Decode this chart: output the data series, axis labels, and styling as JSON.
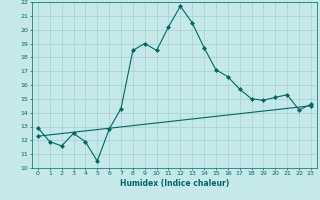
{
  "xlabel": "Humidex (Indice chaleur)",
  "bg_color": "#c5e8e8",
  "grid_color": "#a8d0d0",
  "line_color": "#006868",
  "xlim": [
    -0.5,
    23.5
  ],
  "ylim": [
    10,
    22
  ],
  "xticks": [
    0,
    1,
    2,
    3,
    4,
    5,
    6,
    7,
    8,
    9,
    10,
    11,
    12,
    13,
    14,
    15,
    16,
    17,
    18,
    19,
    20,
    21,
    22,
    23
  ],
  "yticks": [
    10,
    11,
    12,
    13,
    14,
    15,
    16,
    17,
    18,
    19,
    20,
    21,
    22
  ],
  "line1_x": [
    0,
    1,
    2,
    3,
    4,
    5,
    6,
    7,
    8,
    9,
    10,
    11,
    12,
    13,
    14,
    15,
    16,
    17,
    18,
    19,
    20,
    21,
    22,
    23
  ],
  "line1_y": [
    12.9,
    11.9,
    11.6,
    12.5,
    11.9,
    10.5,
    12.8,
    14.3,
    18.5,
    19.0,
    18.5,
    20.2,
    21.7,
    20.5,
    18.7,
    17.1,
    16.6,
    15.7,
    15.0,
    14.9,
    15.1,
    15.3,
    14.2,
    14.6
  ],
  "line2_x": [
    0,
    23
  ],
  "line2_y": [
    12.3,
    14.5
  ],
  "marker": "D",
  "marker_size": 2,
  "line_width": 0.8
}
